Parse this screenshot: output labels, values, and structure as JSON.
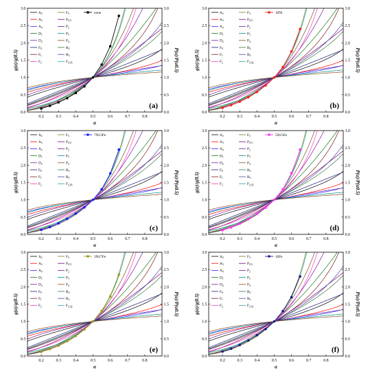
{
  "chart_data": {
    "type": "line",
    "x_label": "α",
    "y_left_label": "g(α)/g(0.5)",
    "y_right_label": "P(α)/P(α0.5)",
    "x_ticks": [
      "0.2",
      "0.3",
      "0.4",
      "0.5",
      "0.6",
      "0.7",
      "0.8"
    ],
    "y_ticks": [
      "0.0",
      "0.5",
      "1.0",
      "1.5",
      "2.0",
      "2.5",
      "3.0"
    ],
    "xlim": [
      0.12,
      0.9
    ],
    "ylim": [
      0,
      3
    ],
    "model_colors": {
      "A2": "#000000",
      "A3": "#ff0000",
      "A4": "#2a2aff",
      "D1": "#1a7a1a",
      "D2": "#7a1a9a",
      "D3": "#6b5b1a",
      "F0": "#1a1a7a",
      "F1": "#7a1a1a",
      "F2": "#ff33cc",
      "F3": "#7a7a1a",
      "P2/3": "#7a007a",
      "P2": "#6a1aa0",
      "P3": "#008a8a",
      "P4": "#8a4a1a",
      "R2": "#3a7a3a",
      "R3": "#4a4a9a",
      "Fn": "#22aaaa"
    },
    "panels": [
      {
        "panel_label": "(a)",
        "legend_col1": [
          "A2",
          "A3",
          "A4",
          "D1",
          "D2",
          "F0",
          "F1",
          "F2"
        ],
        "legend_col2": [
          "F3",
          "P2/3",
          "P2",
          "P3",
          "P4",
          "R2",
          "R3",
          "F3.45"
        ],
        "series_name": "none",
        "series_color": "#000000",
        "marker": "square",
        "x": [
          0.2,
          0.25,
          0.3,
          0.35,
          0.4,
          0.45,
          0.5,
          0.55,
          0.6,
          0.65
        ],
        "y": [
          0.1,
          0.18,
          0.28,
          0.4,
          0.55,
          0.74,
          1.0,
          1.37,
          1.9,
          2.78
        ]
      },
      {
        "panel_label": "(b)",
        "legend_col1": [
          "A2",
          "A3",
          "A4",
          "D1",
          "D2",
          "F0",
          "F1",
          "F2"
        ],
        "legend_col2": [
          "F3",
          "P2/3",
          "P2",
          "P3",
          "P4",
          "R2",
          "R3",
          "F3.02"
        ],
        "series_name": "10Ni",
        "series_color": "#ff1a1a",
        "marker": "circle",
        "x": [
          0.2,
          0.25,
          0.3,
          0.35,
          0.4,
          0.45,
          0.5,
          0.55,
          0.6,
          0.65
        ],
        "y": [
          0.12,
          0.2,
          0.3,
          0.43,
          0.58,
          0.77,
          1.0,
          1.3,
          1.75,
          2.4
        ]
      },
      {
        "panel_label": "(c)",
        "legend_col1": [
          "A2",
          "A3",
          "A4",
          "D1",
          "D2",
          "F0",
          "F1",
          "F2"
        ],
        "legend_col2": [
          "F3",
          "P2/3",
          "P2",
          "P3",
          "P4",
          "R2",
          "R3",
          "F2.85"
        ],
        "series_name": "7Ni/3Fe",
        "series_color": "#1a1aff",
        "marker": "circle",
        "x": [
          0.2,
          0.25,
          0.3,
          0.35,
          0.4,
          0.45,
          0.5,
          0.55,
          0.6,
          0.65
        ],
        "y": [
          0.13,
          0.21,
          0.32,
          0.45,
          0.6,
          0.78,
          1.0,
          1.3,
          1.76,
          2.45
        ]
      },
      {
        "panel_label": "(d)",
        "legend_col1": [
          "A2",
          "A3",
          "A4",
          "D1",
          "D2",
          "F0",
          "F1",
          "F2"
        ],
        "legend_col2": [
          "F3",
          "P2/3",
          "P2",
          "P3",
          "P4",
          "R2",
          "R3",
          "F2.95"
        ],
        "series_name": "5Ni/5Fe",
        "series_color": "#ff33ff",
        "marker": "circle",
        "x": [
          0.2,
          0.25,
          0.3,
          0.35,
          0.4,
          0.45,
          0.5,
          0.55,
          0.6,
          0.65
        ],
        "y": [
          0.12,
          0.2,
          0.31,
          0.44,
          0.59,
          0.77,
          1.0,
          1.3,
          1.77,
          2.45
        ]
      },
      {
        "panel_label": "(e)",
        "legend_col1": [
          "A2",
          "A3",
          "A4",
          "D1",
          "D2",
          "F0",
          "F1",
          "F2"
        ],
        "legend_col2": [
          "F3",
          "P2/3",
          "P2",
          "P3",
          "P4",
          "R2",
          "R3",
          "F2.92"
        ],
        "series_name": "3Ni/7Fe",
        "series_color": "#9a9a1a",
        "marker": "square",
        "x": [
          0.2,
          0.25,
          0.3,
          0.35,
          0.4,
          0.45,
          0.5,
          0.55,
          0.6,
          0.65
        ],
        "y": [
          0.12,
          0.2,
          0.3,
          0.43,
          0.58,
          0.77,
          1.0,
          1.3,
          1.72,
          2.35
        ]
      },
      {
        "panel_label": "(f)",
        "legend_col1": [
          "A2",
          "A3",
          "A4",
          "D1",
          "D2",
          "F0",
          "F1",
          "F2"
        ],
        "legend_col2": [
          "F3",
          "P2/3",
          "P2",
          "P3",
          "P4",
          "R2",
          "R3",
          "F2.91"
        ],
        "series_name": "10Fe",
        "series_color": "#1a1a8a",
        "marker": "circle",
        "x": [
          0.2,
          0.25,
          0.3,
          0.35,
          0.4,
          0.45,
          0.5,
          0.55,
          0.6,
          0.65
        ],
        "y": [
          0.13,
          0.21,
          0.32,
          0.45,
          0.6,
          0.78,
          1.0,
          1.3,
          1.7,
          2.3
        ]
      }
    ]
  }
}
